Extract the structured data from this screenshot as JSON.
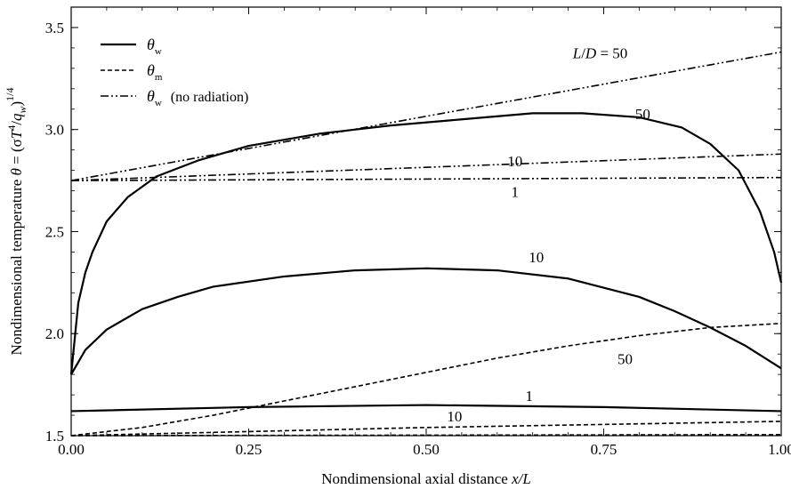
{
  "chart_data": {
    "type": "line",
    "xlabel": "Nondimensional axial distance x/L",
    "ylabel": "Nondimensional temperature θ = (σT⁴/q_w)^1/4",
    "xlim": [
      0,
      1
    ],
    "ylim": [
      1.5,
      3.6
    ],
    "x_ticks": [
      "0.00",
      "0.25",
      "0.50",
      "0.75",
      "1.00"
    ],
    "y_ticks": [
      "1.5",
      "2.0",
      "2.5",
      "3.0",
      "3.5"
    ],
    "grid": false,
    "legend": {
      "placement": "top-left",
      "entries": [
        {
          "symbol": "θ",
          "subscript": "w",
          "extra": "",
          "style": "solid"
        },
        {
          "symbol": "θ",
          "subscript": "m",
          "extra": "",
          "style": "dashed"
        },
        {
          "symbol": "θ",
          "subscript": "w",
          "extra": "(no radiation)",
          "style": "dashdotdot"
        }
      ]
    },
    "series": [
      {
        "name": "θw, L/D = 50",
        "style": "solid",
        "x": [
          0,
          0.01,
          0.02,
          0.03,
          0.05,
          0.08,
          0.12,
          0.18,
          0.25,
          0.35,
          0.45,
          0.55,
          0.65,
          0.72,
          0.8,
          0.86,
          0.9,
          0.94,
          0.97,
          0.99,
          1.0
        ],
        "y": [
          1.8,
          2.15,
          2.3,
          2.4,
          2.55,
          2.67,
          2.77,
          2.85,
          2.92,
          2.98,
          3.02,
          3.05,
          3.08,
          3.08,
          3.06,
          3.01,
          2.93,
          2.8,
          2.6,
          2.4,
          2.25
        ]
      },
      {
        "name": "θw, L/D = 10",
        "style": "solid",
        "x": [
          0,
          0.02,
          0.05,
          0.1,
          0.15,
          0.2,
          0.3,
          0.4,
          0.5,
          0.6,
          0.7,
          0.8,
          0.85,
          0.9,
          0.95,
          1.0
        ],
        "y": [
          1.8,
          1.92,
          2.02,
          2.12,
          2.18,
          2.23,
          2.28,
          2.31,
          2.32,
          2.31,
          2.27,
          2.18,
          2.11,
          2.03,
          1.94,
          1.83
        ]
      },
      {
        "name": "θw, L/D = 1",
        "style": "solid",
        "x": [
          0,
          0.25,
          0.5,
          0.75,
          1.0
        ],
        "y": [
          1.62,
          1.64,
          1.65,
          1.64,
          1.62
        ]
      },
      {
        "name": "θm, L/D = 50",
        "style": "dashed",
        "x": [
          0,
          0.1,
          0.2,
          0.3,
          0.4,
          0.5,
          0.6,
          0.7,
          0.8,
          0.9,
          1.0
        ],
        "y": [
          1.5,
          1.54,
          1.6,
          1.67,
          1.74,
          1.81,
          1.88,
          1.94,
          1.99,
          2.03,
          2.05
        ]
      },
      {
        "name": "θm, L/D = 10",
        "style": "dashed",
        "x": [
          0,
          0.25,
          0.5,
          0.75,
          1.0
        ],
        "y": [
          1.5,
          1.52,
          1.54,
          1.555,
          1.57
        ]
      },
      {
        "name": "θm, L/D = 1",
        "style": "dashed",
        "x": [
          0,
          1.0
        ],
        "y": [
          1.5,
          1.505
        ]
      },
      {
        "name": "θw (no radiation), L/D = 50",
        "style": "dashdotdot",
        "x": [
          0,
          1.0
        ],
        "y": [
          2.75,
          3.38
        ]
      },
      {
        "name": "θw (no radiation), L/D = 10",
        "style": "dashdotdot",
        "x": [
          0,
          1.0
        ],
        "y": [
          2.75,
          2.88
        ]
      },
      {
        "name": "θw (no radiation), L/D = 1",
        "style": "dashdotdot",
        "x": [
          0,
          1.0
        ],
        "y": [
          2.75,
          2.765
        ]
      }
    ],
    "annotations": [
      {
        "text": "L/D = 50",
        "x": 0.745,
        "y": 3.35
      },
      {
        "text": "50",
        "x": 0.805,
        "y": 3.05
      },
      {
        "text": "10",
        "x": 0.625,
        "y": 2.82
      },
      {
        "text": "1",
        "x": 0.625,
        "y": 2.67
      },
      {
        "text": "10",
        "x": 0.655,
        "y": 2.35
      },
      {
        "text": "50",
        "x": 0.78,
        "y": 1.85
      },
      {
        "text": "1",
        "x": 0.645,
        "y": 1.67
      },
      {
        "text": "10",
        "x": 0.54,
        "y": 1.57
      }
    ]
  }
}
